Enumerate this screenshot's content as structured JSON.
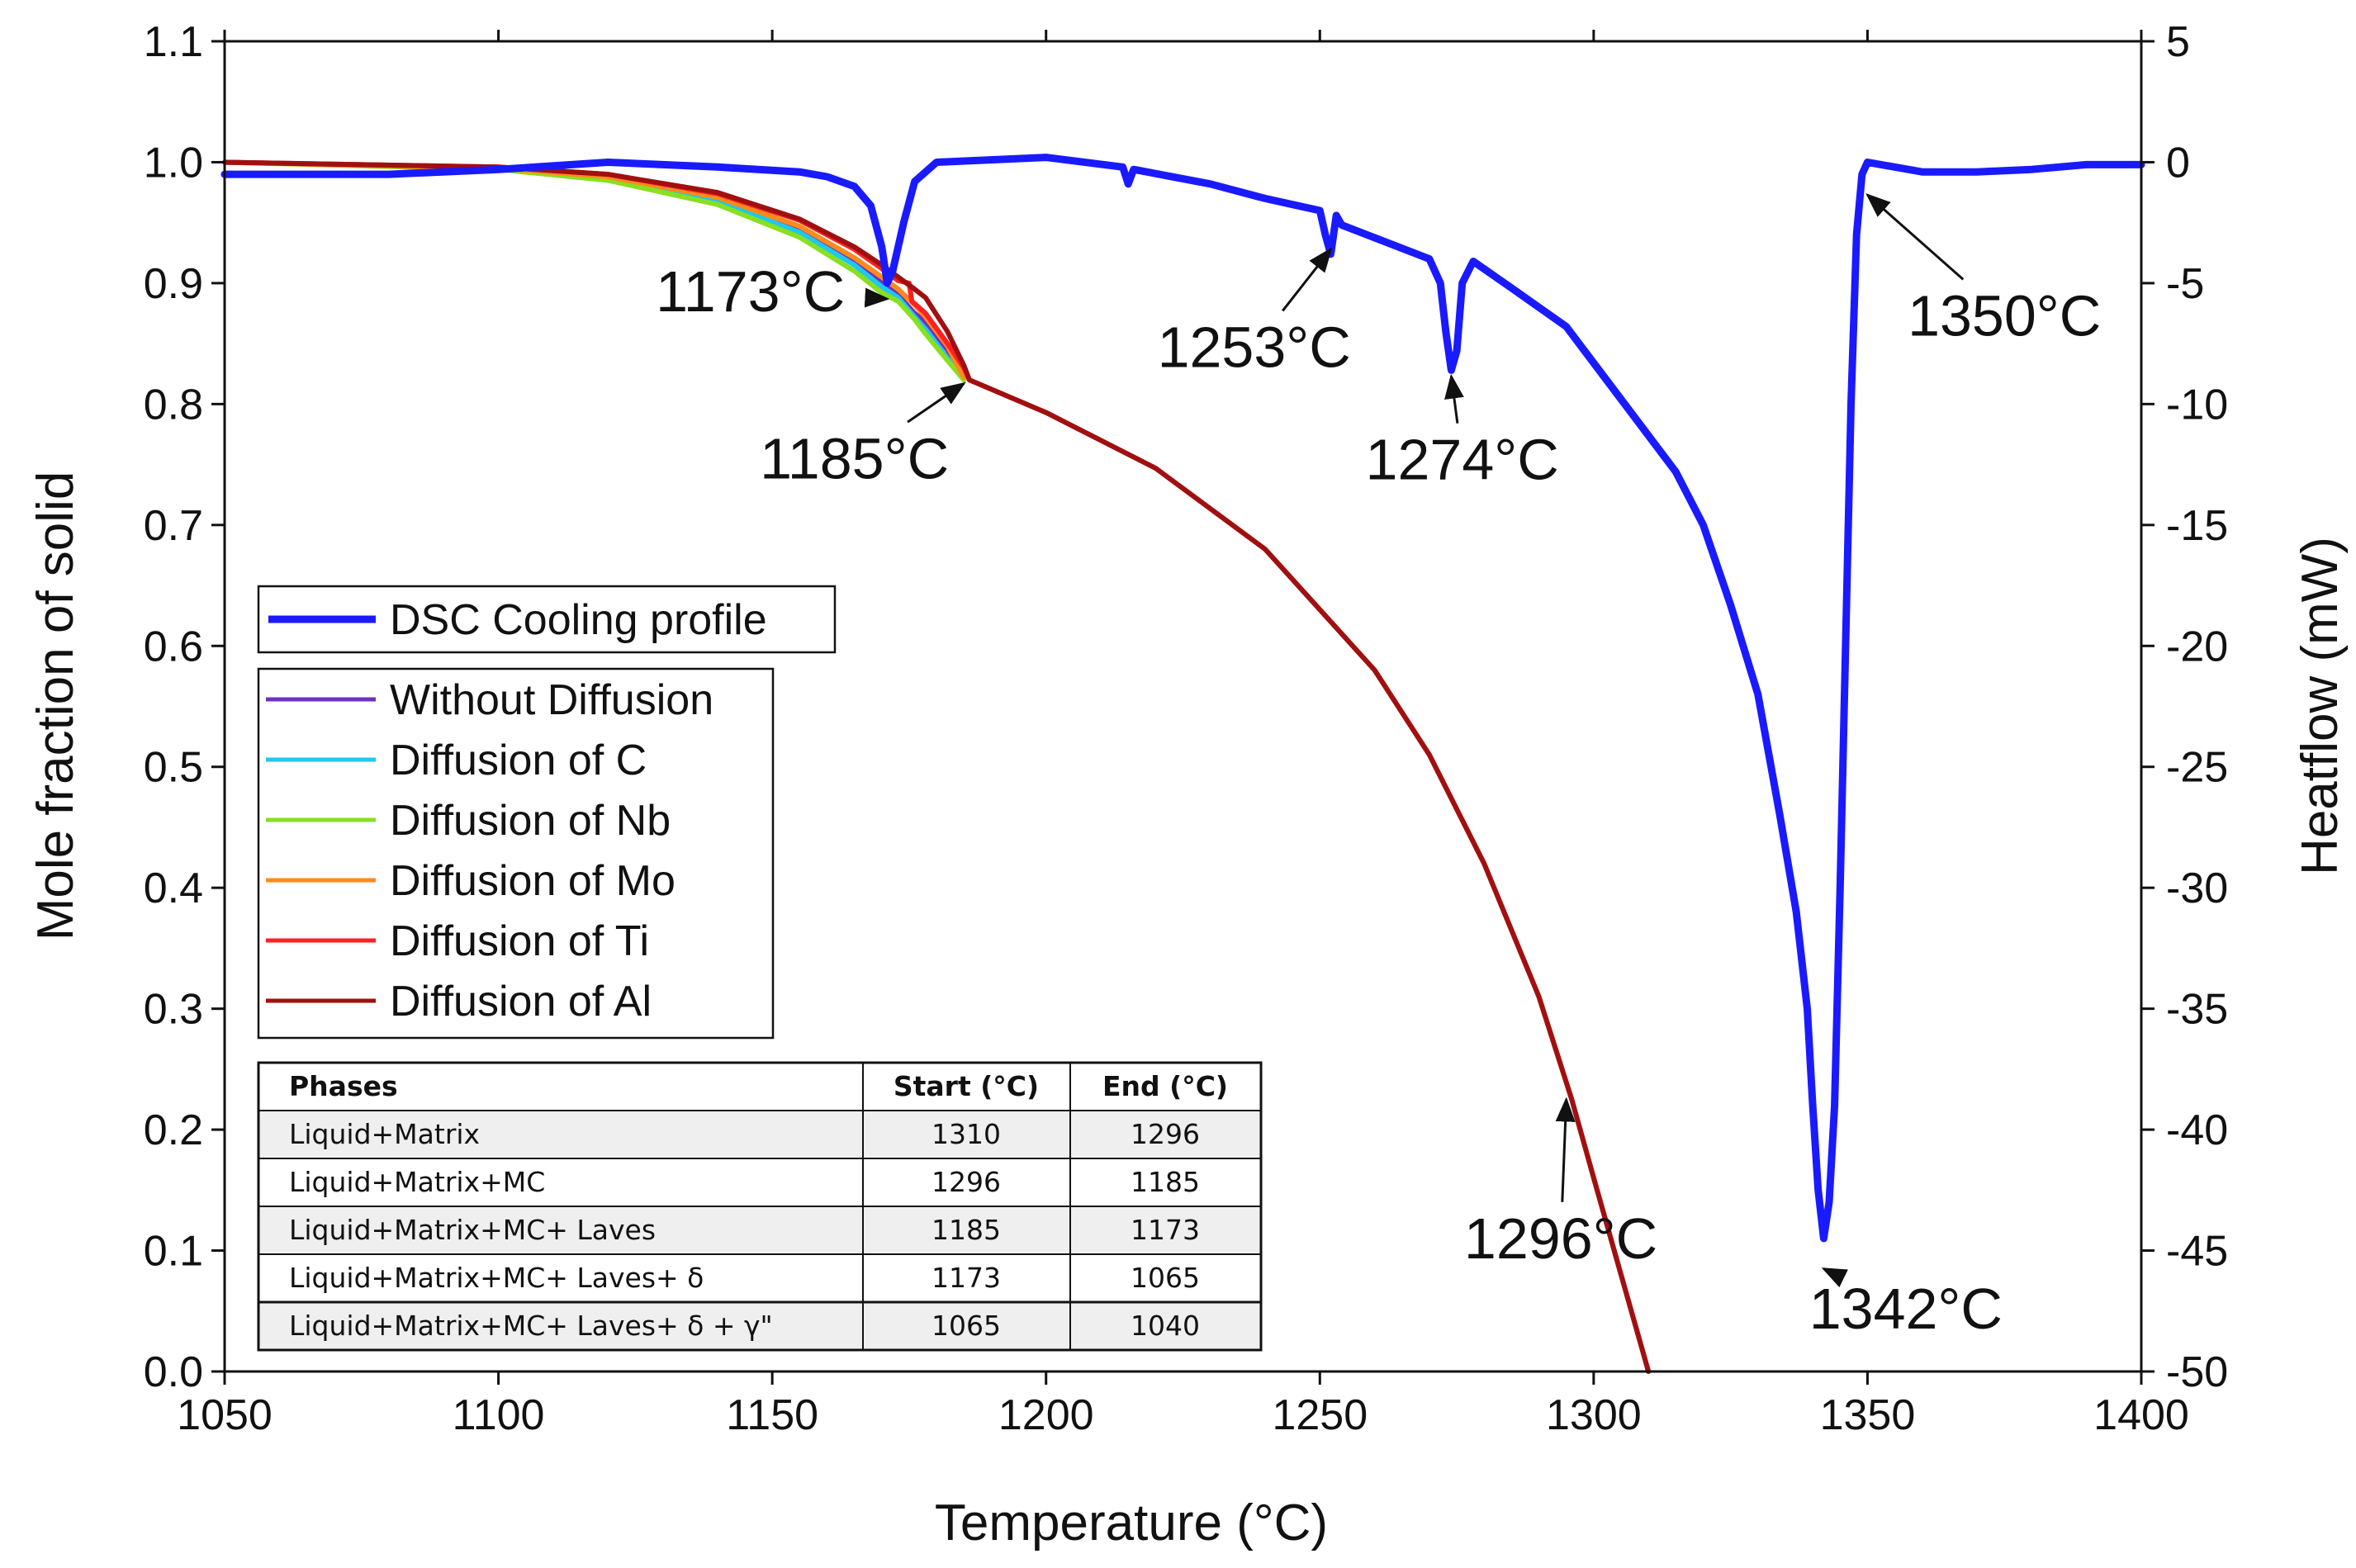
{
  "chart_data": {
    "type": "line",
    "title": "",
    "xlabel": "Temperature (°C)",
    "ylabel_left": "Mole fraction of solid",
    "ylabel_right": "Heatflow (mW)",
    "xlim": [
      1050,
      1400
    ],
    "ylim_left": [
      0.0,
      1.1
    ],
    "ylim_right": [
      -50,
      5
    ],
    "x_ticks": [
      "1050",
      "1100",
      "1150",
      "1200",
      "1250",
      "1300",
      "1350",
      "1400"
    ],
    "y_ticks_left": [
      "0.0",
      "0.1",
      "0.2",
      "0.3",
      "0.4",
      "0.5",
      "0.6",
      "0.7",
      "0.8",
      "0.9",
      "1.0",
      "1.1"
    ],
    "y_ticks_right": [
      "-50",
      "-45",
      "-40",
      "-35",
      "-30",
      "-25",
      "-20",
      "-15",
      "-10",
      "-5",
      "0",
      "5"
    ],
    "series": [
      {
        "name": "DSC Cooling profile",
        "axis": "right",
        "color": "#1a1aff",
        "x": [
          1050,
          1080,
          1100,
          1120,
          1140,
          1155,
          1160,
          1165,
          1168,
          1170,
          1171,
          1172,
          1174,
          1176,
          1180,
          1200,
          1214,
          1215,
          1216,
          1230,
          1240,
          1250,
          1251,
          1252,
          1253,
          1254,
          1262,
          1270,
          1272,
          1273,
          1274,
          1275,
          1276,
          1278,
          1285,
          1295,
          1305,
          1315,
          1320,
          1325,
          1330,
          1334,
          1337,
          1339,
          1340,
          1341,
          1342,
          1343,
          1344,
          1345,
          1346,
          1347,
          1348,
          1349,
          1350,
          1360,
          1370,
          1380,
          1390,
          1400
        ],
        "y": [
          -0.5,
          -0.5,
          -0.3,
          0.0,
          -0.2,
          -0.4,
          -0.6,
          -1.0,
          -1.8,
          -3.5,
          -5.0,
          -4.5,
          -2.5,
          -0.8,
          0.0,
          0.2,
          -0.2,
          -0.9,
          -0.3,
          -0.9,
          -1.5,
          -2.0,
          -3.0,
          -3.8,
          -2.2,
          -2.6,
          -3.3,
          -4.0,
          -5.0,
          -7.0,
          -8.6,
          -7.8,
          -5.0,
          -4.1,
          -5.2,
          -6.8,
          -9.8,
          -12.8,
          -15.0,
          -18.3,
          -22.0,
          -27.0,
          -31.0,
          -35.0,
          -39.0,
          -42.5,
          -44.5,
          -43.0,
          -39.0,
          -30.0,
          -20.0,
          -10.0,
          -3.0,
          -0.5,
          0.0,
          -0.4,
          -0.4,
          -0.3,
          -0.1,
          -0.1
        ]
      },
      {
        "name": "Without Diffusion",
        "axis": "left",
        "color": "#7030c0",
        "x": [
          1050,
          1100,
          1120,
          1140,
          1155,
          1165,
          1170,
          1173,
          1176,
          1178,
          1182,
          1185
        ],
        "y": [
          1.0,
          0.995,
          0.988,
          0.97,
          0.945,
          0.918,
          0.9,
          0.89,
          0.875,
          0.868,
          0.845,
          0.822
        ]
      },
      {
        "name": "Diffusion of C",
        "axis": "left",
        "color": "#1ec8ee",
        "x": [
          1050,
          1100,
          1120,
          1140,
          1155,
          1165,
          1170,
          1173,
          1176,
          1178,
          1182,
          1185
        ],
        "y": [
          1.0,
          0.995,
          0.987,
          0.968,
          0.942,
          0.915,
          0.897,
          0.888,
          0.872,
          0.862,
          0.838,
          0.82
        ]
      },
      {
        "name": "Diffusion of Nb",
        "axis": "left",
        "color": "#88e020",
        "x": [
          1050,
          1100,
          1120,
          1140,
          1155,
          1165,
          1170,
          1173,
          1176,
          1178,
          1182,
          1185
        ],
        "y": [
          1.0,
          0.994,
          0.985,
          0.965,
          0.938,
          0.91,
          0.892,
          0.885,
          0.87,
          0.858,
          0.836,
          0.82
        ]
      },
      {
        "name": "Diffusion of Mo",
        "axis": "left",
        "color": "#ff8a1a",
        "x": [
          1050,
          1100,
          1120,
          1140,
          1155,
          1165,
          1170,
          1173,
          1176,
          1178,
          1182,
          1185
        ],
        "y": [
          1.0,
          0.995,
          0.988,
          0.971,
          0.947,
          0.921,
          0.905,
          0.895,
          0.882,
          0.872,
          0.848,
          0.822
        ]
      },
      {
        "name": "Diffusion of Ti",
        "axis": "left",
        "color": "#ff2020",
        "x": [
          1050,
          1100,
          1120,
          1140,
          1155,
          1165,
          1170,
          1173,
          1175,
          1175.5,
          1178,
          1182,
          1185,
          1186,
          1200,
          1220,
          1240,
          1260,
          1270,
          1280,
          1290,
          1296,
          1300,
          1305,
          1310
        ],
        "y": [
          1.0,
          0.996,
          0.99,
          0.974,
          0.952,
          0.928,
          0.912,
          0.902,
          0.9,
          0.885,
          0.875,
          0.85,
          0.83,
          0.82,
          0.793,
          0.747,
          0.68,
          0.58,
          0.51,
          0.42,
          0.31,
          0.225,
          0.16,
          0.08,
          0.0
        ]
      },
      {
        "name": "Diffusion of Al",
        "axis": "left",
        "color": "#a01010",
        "x": [
          1050,
          1100,
          1120,
          1140,
          1155,
          1165,
          1170,
          1173,
          1176,
          1178,
          1182,
          1185,
          1186,
          1200,
          1220,
          1240,
          1260,
          1270,
          1280,
          1290,
          1296,
          1300,
          1305,
          1310
        ],
        "y": [
          1.0,
          0.996,
          0.99,
          0.975,
          0.953,
          0.93,
          0.915,
          0.905,
          0.895,
          0.888,
          0.86,
          0.832,
          0.82,
          0.793,
          0.747,
          0.68,
          0.58,
          0.51,
          0.42,
          0.31,
          0.225,
          0.16,
          0.08,
          0.0
        ]
      }
    ],
    "annotations": [
      {
        "text": "1173°C",
        "label_x": 1146,
        "label_y": 0.893,
        "target_x": 1171,
        "target_y": 0.887,
        "axis": "left"
      },
      {
        "text": "1185°C",
        "label_x": 1165,
        "label_y": 0.755,
        "target_x": 1185,
        "target_y": 0.817,
        "axis": "left"
      },
      {
        "text": "1253°C",
        "label_x": 1238,
        "label_y": 0.847,
        "target_x": 1252,
        "target_y": 0.928,
        "axis": "left"
      },
      {
        "text": "1274°C",
        "label_x": 1276,
        "label_y": 0.754,
        "target_x": 1274,
        "target_y": 0.823,
        "axis": "left"
      },
      {
        "text": "1350°C",
        "label_x": 1375,
        "label_y": 0.873,
        "target_x": 1350,
        "target_y": 0.973,
        "axis": "left"
      },
      {
        "text": "1296°C",
        "label_x": 1294,
        "label_y": 0.11,
        "target_x": 1295,
        "target_y": 0.225,
        "axis": "left"
      },
      {
        "text": "1342°C",
        "label_x": 1357,
        "label_y": 0.052,
        "target_x": 1342,
        "target_y": 0.085,
        "axis": "left"
      }
    ],
    "legend": {
      "dsc": "DSC Cooling profile",
      "entries": [
        "Without Diffusion",
        "Diffusion of C",
        "Diffusion of Nb",
        "Diffusion of Mo",
        "Diffusion of Ti",
        "Diffusion of Al"
      ]
    },
    "table": {
      "headers": [
        "Phases",
        "Start (°C)",
        "End (°C)"
      ],
      "rows": [
        [
          "Liquid+Matrix",
          "1310",
          "1296"
        ],
        [
          "Liquid+Matrix+MC",
          "1296",
          "1185"
        ],
        [
          "Liquid+Matrix+MC+ Laves",
          "1185",
          "1173"
        ],
        [
          "Liquid+Matrix+MC+ Laves+ δ",
          "1173",
          "1065"
        ],
        [
          "Liquid+Matrix+MC+ Laves+  δ + γ\"",
          "1065",
          "1040"
        ]
      ]
    }
  }
}
